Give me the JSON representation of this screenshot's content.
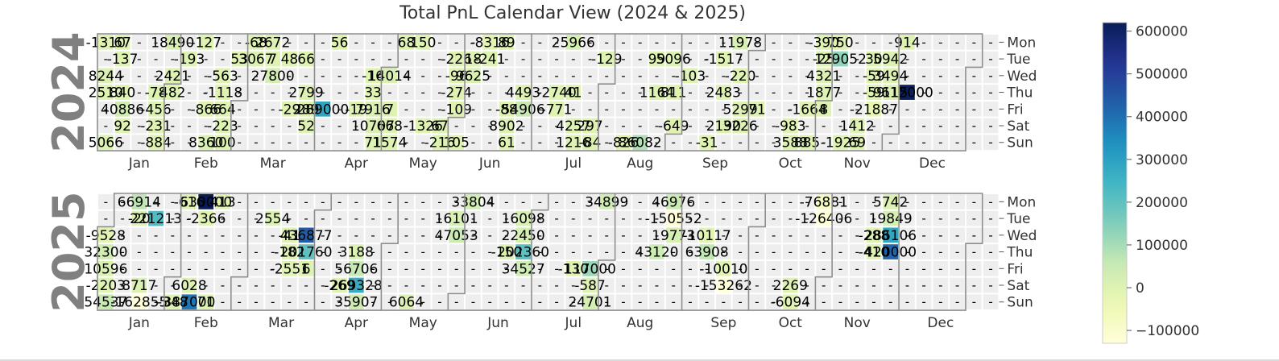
{
  "chart_data": {
    "type": "heatmap",
    "title": "Total PnL Calendar View (2024 & 2025)",
    "weekday_labels": [
      "Mon",
      "Tue",
      "Wed",
      "Thu",
      "Fri",
      "Sat",
      "Sun"
    ],
    "month_labels": [
      "Jan",
      "Feb",
      "Mar",
      "Apr",
      "May",
      "Jun",
      "Jul",
      "Aug",
      "Sep",
      "Oct",
      "Nov",
      "Dec"
    ],
    "empty_marker": "-",
    "colorbar": {
      "colormap": "YlGnBu",
      "range": [
        -130000,
        620000
      ],
      "ticks": [
        -100000,
        0,
        100000,
        200000,
        300000,
        400000,
        500000,
        600000
      ],
      "tick_labels": [
        "−100000",
        "0",
        "100000",
        "200000",
        "300000",
        "400000",
        "500000",
        "600000"
      ]
    },
    "colors": {
      "empty_cell": "#eeeeee",
      "month_border": "#8c8c8c",
      "text": "#000000"
    },
    "years": [
      {
        "year": "2024",
        "label": "2024",
        "first_weekday": 0,
        "num_days": 366,
        "days": [
          {
            "date": "2024-01-01",
            "value": -1310
          },
          {
            "date": "2024-01-08",
            "value": 67
          },
          {
            "date": "2024-01-29",
            "value": 18490
          },
          {
            "date": "2024-02-12",
            "value": -127
          },
          {
            "date": "2024-03-04",
            "value": -68
          },
          {
            "date": "2024-03-11",
            "value": 2672
          },
          {
            "date": "2024-04-08",
            "value": 56
          },
          {
            "date": "2024-05-06",
            "value": 68
          },
          {
            "date": "2024-05-13",
            "value": 150
          },
          {
            "date": "2024-06-10",
            "value": -8316
          },
          {
            "date": "2024-06-17",
            "value": 89
          },
          {
            "date": "2024-07-15",
            "value": 25966
          },
          {
            "date": "2024-09-23",
            "value": 11978
          },
          {
            "date": "2024-10-28",
            "value": -390
          },
          {
            "date": "2024-11-04",
            "value": 750
          },
          {
            "date": "2024-12-02",
            "value": 914
          },
          {
            "date": "2024-01-09",
            "value": -137
          },
          {
            "date": "2024-02-06",
            "value": -193
          },
          {
            "date": "2024-02-27",
            "value": 53
          },
          {
            "date": "2024-03-05",
            "value": 3067
          },
          {
            "date": "2024-03-12",
            "value": 7
          },
          {
            "date": "2024-03-19",
            "value": 48
          },
          {
            "date": "2024-03-26",
            "value": 66
          },
          {
            "date": "2024-05-28",
            "value": -226
          },
          {
            "date": "2024-06-04",
            "value": 18
          },
          {
            "date": "2024-06-11",
            "value": -241
          },
          {
            "date": "2024-07-30",
            "value": -129
          },
          {
            "date": "2024-08-20",
            "value": 99
          },
          {
            "date": "2024-08-27",
            "value": 5096
          },
          {
            "date": "2024-09-17",
            "value": -1517
          },
          {
            "date": "2024-10-29",
            "value": -25
          },
          {
            "date": "2024-11-05",
            "value": 129052
          },
          {
            "date": "2024-11-19",
            "value": 30
          },
          {
            "date": "2024-11-26",
            "value": 5942
          },
          {
            "date": "2024-01-03",
            "value": 8244
          },
          {
            "date": "2024-01-31",
            "value": 2421
          },
          {
            "date": "2024-02-21",
            "value": -563
          },
          {
            "date": "2024-03-13",
            "value": 27800
          },
          {
            "date": "2024-04-24",
            "value": -16
          },
          {
            "date": "2024-05-01",
            "value": 14014
          },
          {
            "date": "2024-05-29",
            "value": -96
          },
          {
            "date": "2024-06-05",
            "value": 9625
          },
          {
            "date": "2024-09-04",
            "value": -103
          },
          {
            "date": "2024-09-25",
            "value": -220
          },
          {
            "date": "2024-10-30",
            "value": 4321
          },
          {
            "date": "2024-11-20",
            "value": -59
          },
          {
            "date": "2024-11-27",
            "value": 3494
          },
          {
            "date": "2024-01-04",
            "value": 2510
          },
          {
            "date": "2024-01-11",
            "value": 840
          },
          {
            "date": "2024-01-25",
            "value": -78
          },
          {
            "date": "2024-02-01",
            "value": 482
          },
          {
            "date": "2024-02-22",
            "value": -1118
          },
          {
            "date": "2024-03-28",
            "value": 2799
          },
          {
            "date": "2024-04-25",
            "value": 33
          },
          {
            "date": "2024-05-30",
            "value": -274
          },
          {
            "date": "2024-06-27",
            "value": 4493
          },
          {
            "date": "2024-07-11",
            "value": -2740
          },
          {
            "date": "2024-07-18",
            "value": 41
          },
          {
            "date": "2024-08-22",
            "value": 1164
          },
          {
            "date": "2024-08-29",
            "value": 811
          },
          {
            "date": "2024-09-19",
            "value": 2483
          },
          {
            "date": "2024-10-31",
            "value": 1877
          },
          {
            "date": "2024-11-21",
            "value": -59
          },
          {
            "date": "2024-11-28",
            "value": 9115
          },
          {
            "date": "2024-12-05",
            "value": 612000
          },
          {
            "date": "2024-01-12",
            "value": 40886
          },
          {
            "date": "2024-01-26",
            "value": -456
          },
          {
            "date": "2024-02-16",
            "value": -866
          },
          {
            "date": "2024-02-23",
            "value": 664
          },
          {
            "date": "2024-03-22",
            "value": -29
          },
          {
            "date": "2024-03-29",
            "value": 289
          },
          {
            "date": "2024-04-05",
            "value": 289000
          },
          {
            "date": "2024-04-19",
            "value": -19
          },
          {
            "date": "2024-04-26",
            "value": 7916
          },
          {
            "date": "2024-05-03",
            "value": 7
          },
          {
            "date": "2024-05-31",
            "value": -109
          },
          {
            "date": "2024-06-21",
            "value": -88
          },
          {
            "date": "2024-06-28",
            "value": 54906
          },
          {
            "date": "2024-07-12",
            "value": -771
          },
          {
            "date": "2024-09-27",
            "value": 5299
          },
          {
            "date": "2024-10-04",
            "value": 71
          },
          {
            "date": "2024-10-25",
            "value": -1664
          },
          {
            "date": "2024-11-01",
            "value": 8
          },
          {
            "date": "2024-11-22",
            "value": -21887
          },
          {
            "date": "2024-01-13",
            "value": 92
          },
          {
            "date": "2024-01-27",
            "value": -231
          },
          {
            "date": "2024-02-24",
            "value": -223
          },
          {
            "date": "2024-03-30",
            "value": 52
          },
          {
            "date": "2024-04-27",
            "value": 10707
          },
          {
            "date": "2024-05-04",
            "value": 668
          },
          {
            "date": "2024-05-18",
            "value": -1326
          },
          {
            "date": "2024-05-25",
            "value": 67
          },
          {
            "date": "2024-06-22",
            "value": 8902
          },
          {
            "date": "2024-07-20",
            "value": 4257
          },
          {
            "date": "2024-07-27",
            "value": 297
          },
          {
            "date": "2024-08-31",
            "value": -649
          },
          {
            "date": "2024-09-21",
            "value": 2190
          },
          {
            "date": "2024-09-28",
            "value": 3226
          },
          {
            "date": "2024-10-19",
            "value": -983
          },
          {
            "date": "2024-11-16",
            "value": 1412
          },
          {
            "date": "2024-01-07",
            "value": 5066
          },
          {
            "date": "2024-01-28",
            "value": -884
          },
          {
            "date": "2024-02-18",
            "value": 8360
          },
          {
            "date": "2024-02-25",
            "value": 100
          },
          {
            "date": "2024-04-28",
            "value": 71
          },
          {
            "date": "2024-05-05",
            "value": 1574
          },
          {
            "date": "2024-05-26",
            "value": -216
          },
          {
            "date": "2024-06-02",
            "value": 105
          },
          {
            "date": "2024-06-23",
            "value": 61
          },
          {
            "date": "2024-07-21",
            "value": 1216
          },
          {
            "date": "2024-07-28",
            "value": -84
          },
          {
            "date": "2024-08-11",
            "value": -826
          },
          {
            "date": "2024-08-18",
            "value": 86082
          },
          {
            "date": "2024-09-15",
            "value": -31
          },
          {
            "date": "2024-10-20",
            "value": 3588
          },
          {
            "date": "2024-10-27",
            "value": 885
          },
          {
            "date": "2024-11-10",
            "value": -1925
          },
          {
            "date": "2024-11-17",
            "value": 69
          }
        ]
      },
      {
        "year": "2025",
        "label": "2025",
        "first_weekday": 2,
        "num_days": 365,
        "days": [
          {
            "date": "2025-01-13",
            "value": 66914
          },
          {
            "date": "2025-02-03",
            "value": -616
          },
          {
            "date": "2025-02-10",
            "value": 630000
          },
          {
            "date": "2025-02-17",
            "value": 413
          },
          {
            "date": "2025-06-02",
            "value": 33804
          },
          {
            "date": "2025-07-28",
            "value": 34899
          },
          {
            "date": "2025-08-25",
            "value": 46976
          },
          {
            "date": "2025-10-27",
            "value": -76881
          },
          {
            "date": "2025-11-24",
            "value": 5742
          },
          {
            "date": "2025-01-14",
            "value": -20
          },
          {
            "date": "2025-01-21",
            "value": 221213
          },
          {
            "date": "2025-02-11",
            "value": -2366
          },
          {
            "date": "2025-03-11",
            "value": 2554
          },
          {
            "date": "2025-05-27",
            "value": 16101
          },
          {
            "date": "2025-06-24",
            "value": 16098
          },
          {
            "date": "2025-08-26",
            "value": -150552
          },
          {
            "date": "2025-10-28",
            "value": -126406
          },
          {
            "date": "2025-11-25",
            "value": 19849
          },
          {
            "date": "2025-01-01",
            "value": -9528
          },
          {
            "date": "2025-03-19",
            "value": -41
          },
          {
            "date": "2025-03-26",
            "value": 436877
          },
          {
            "date": "2025-05-28",
            "value": 47053
          },
          {
            "date": "2025-06-25",
            "value": 22450
          },
          {
            "date": "2025-08-27",
            "value": 19773
          },
          {
            "date": "2025-09-10",
            "value": -10117
          },
          {
            "date": "2025-11-19",
            "value": -288
          },
          {
            "date": "2025-11-26",
            "value": 286106
          },
          {
            "date": "2025-01-02",
            "value": 32300
          },
          {
            "date": "2025-03-20",
            "value": -182
          },
          {
            "date": "2025-03-27",
            "value": 201760
          },
          {
            "date": "2025-04-17",
            "value": 3188
          },
          {
            "date": "2025-06-19",
            "value": -150
          },
          {
            "date": "2025-06-26",
            "value": 202360
          },
          {
            "date": "2025-08-21",
            "value": 43120
          },
          {
            "date": "2025-09-11",
            "value": 63908
          },
          {
            "date": "2025-11-20",
            "value": -410
          },
          {
            "date": "2025-11-27",
            "value": 420000
          },
          {
            "date": "2025-01-03",
            "value": 10596
          },
          {
            "date": "2025-03-21",
            "value": -2551
          },
          {
            "date": "2025-03-28",
            "value": 6
          },
          {
            "date": "2025-04-18",
            "value": 56706
          },
          {
            "date": "2025-06-27",
            "value": 34527
          },
          {
            "date": "2025-07-18",
            "value": -130
          },
          {
            "date": "2025-07-25",
            "value": 117000
          },
          {
            "date": "2025-09-19",
            "value": -10010
          },
          {
            "date": "2025-01-04",
            "value": -2203
          },
          {
            "date": "2025-01-18",
            "value": 8717
          },
          {
            "date": "2025-02-08",
            "value": 6028
          },
          {
            "date": "2025-04-12",
            "value": -269
          },
          {
            "date": "2025-04-19",
            "value": 269328
          },
          {
            "date": "2025-07-26",
            "value": -587
          },
          {
            "date": "2025-09-20",
            "value": -153262
          },
          {
            "date": "2025-10-18",
            "value": 2269
          },
          {
            "date": "2025-01-05",
            "value": 54537
          },
          {
            "date": "2025-01-19",
            "value": -162855
          },
          {
            "date": "2025-02-02",
            "value": -348
          },
          {
            "date": "2025-02-09",
            "value": 387000
          },
          {
            "date": "2025-02-16",
            "value": 71
          },
          {
            "date": "2025-04-20",
            "value": 35907
          },
          {
            "date": "2025-05-11",
            "value": 6064
          },
          {
            "date": "2025-07-27",
            "value": 24701
          },
          {
            "date": "2025-10-19",
            "value": -6094
          }
        ]
      }
    ]
  }
}
